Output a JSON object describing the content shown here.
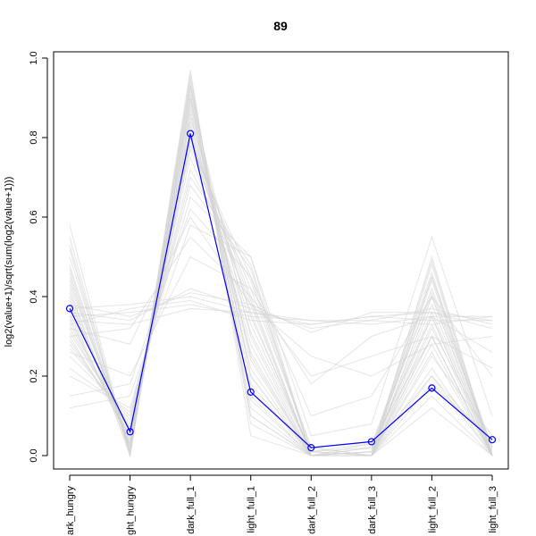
{
  "chart_data": {
    "type": "line",
    "title": "89",
    "xlabel": "",
    "ylabel": "log2(value+1)/sqrt(sum(log2(value+1)))",
    "categories": [
      "dark_hungry",
      "light_hungry",
      "dark_full_1",
      "light_full_1",
      "dark_full_2",
      "dark_full_3",
      "light_full_2",
      "light_full_3"
    ],
    "category_labels_shown": [
      "ark_hungry",
      "ght_hungry",
      "dark_full_1",
      "light_full_1",
      "dark_full_2",
      "dark_full_3",
      "light_full_2",
      "light_full_3"
    ],
    "ylim": [
      0,
      1.0
    ],
    "yticks": [
      "0.0",
      "0.2",
      "0.4",
      "0.6",
      "0.8",
      "1.0"
    ],
    "grid": false,
    "highlight_series": {
      "color": "#0000ff",
      "marker": "open-circle",
      "values": [
        0.37,
        0.06,
        0.81,
        0.16,
        0.02,
        0.035,
        0.17,
        0.04
      ]
    },
    "background_series_color": "#d3d3d3",
    "background_series": [
      [
        0.45,
        0.02,
        0.9,
        0.3,
        0.0,
        0.0,
        0.45,
        0.0
      ],
      [
        0.4,
        0.01,
        0.93,
        0.2,
        0.0,
        0.0,
        0.4,
        0.0
      ],
      [
        0.55,
        0.0,
        0.95,
        0.1,
        0.0,
        0.0,
        0.3,
        0.0
      ],
      [
        0.35,
        0.03,
        0.85,
        0.35,
        0.01,
        0.02,
        0.2,
        0.03
      ],
      [
        0.3,
        0.05,
        0.8,
        0.4,
        0.0,
        0.0,
        0.5,
        0.0
      ],
      [
        0.5,
        0.02,
        0.88,
        0.25,
        0.0,
        0.0,
        0.35,
        0.0
      ],
      [
        0.42,
        0.0,
        0.92,
        0.15,
        0.0,
        0.01,
        0.45,
        0.02
      ],
      [
        0.38,
        0.04,
        0.78,
        0.45,
        0.02,
        0.0,
        0.25,
        0.05
      ],
      [
        0.28,
        0.08,
        0.75,
        0.38,
        0.0,
        0.03,
        0.3,
        0.0
      ],
      [
        0.48,
        0.01,
        0.97,
        0.05,
        0.0,
        0.0,
        0.15,
        0.0
      ],
      [
        0.33,
        0.06,
        0.83,
        0.33,
        0.01,
        0.0,
        0.4,
        0.01
      ],
      [
        0.25,
        0.1,
        0.7,
        0.48,
        0.0,
        0.02,
        0.35,
        0.0
      ],
      [
        0.44,
        0.02,
        0.86,
        0.22,
        0.0,
        0.0,
        0.48,
        0.0
      ],
      [
        0.52,
        0.0,
        0.91,
        0.12,
        0.0,
        0.0,
        0.22,
        0.0
      ],
      [
        0.36,
        0.03,
        0.82,
        0.28,
        0.0,
        0.01,
        0.42,
        0.02
      ],
      [
        0.2,
        0.12,
        0.65,
        0.5,
        0.0,
        0.0,
        0.28,
        0.0
      ],
      [
        0.31,
        0.07,
        0.79,
        0.42,
        0.02,
        0.0,
        0.18,
        0.04
      ],
      [
        0.46,
        0.01,
        0.89,
        0.18,
        0.0,
        0.0,
        0.38,
        0.0
      ],
      [
        0.39,
        0.04,
        0.84,
        0.26,
        0.0,
        0.02,
        0.46,
        0.0
      ],
      [
        0.27,
        0.09,
        0.72,
        0.44,
        0.01,
        0.0,
        0.32,
        0.03
      ],
      [
        0.58,
        0.0,
        0.96,
        0.08,
        0.0,
        0.0,
        0.12,
        0.0
      ],
      [
        0.34,
        0.05,
        0.81,
        0.36,
        0.0,
        0.0,
        0.44,
        0.0
      ],
      [
        0.41,
        0.02,
        0.87,
        0.24,
        0.0,
        0.01,
        0.36,
        0.01
      ],
      [
        0.22,
        0.11,
        0.68,
        0.47,
        0.0,
        0.0,
        0.26,
        0.0
      ],
      [
        0.37,
        0.38,
        0.4,
        0.36,
        0.33,
        0.35,
        0.36,
        0.34
      ],
      [
        0.35,
        0.36,
        0.38,
        0.35,
        0.34,
        0.33,
        0.35,
        0.35
      ],
      [
        0.36,
        0.34,
        0.42,
        0.37,
        0.32,
        0.34,
        0.37,
        0.33
      ],
      [
        0.33,
        0.37,
        0.39,
        0.34,
        0.33,
        0.35,
        0.34,
        0.34
      ],
      [
        0.38,
        0.35,
        0.41,
        0.38,
        0.31,
        0.36,
        0.36,
        0.32
      ],
      [
        0.34,
        0.33,
        0.37,
        0.36,
        0.34,
        0.34,
        0.33,
        0.35
      ],
      [
        0.3,
        0.32,
        0.55,
        0.4,
        0.2,
        0.25,
        0.3,
        0.22
      ],
      [
        0.26,
        0.2,
        0.5,
        0.42,
        0.18,
        0.3,
        0.35,
        0.26
      ],
      [
        0.32,
        0.28,
        0.6,
        0.38,
        0.25,
        0.2,
        0.28,
        0.3
      ],
      [
        0.15,
        0.18,
        0.62,
        0.45,
        0.1,
        0.15,
        0.4,
        0.2
      ],
      [
        0.12,
        0.15,
        0.58,
        0.5,
        0.05,
        0.08,
        0.55,
        0.1
      ],
      [
        0.43,
        0.03,
        0.94,
        0.14,
        0.0,
        0.0,
        0.3,
        0.0
      ],
      [
        0.47,
        0.02,
        0.9,
        0.2,
        0.0,
        0.0,
        0.33,
        0.0
      ],
      [
        0.29,
        0.07,
        0.77,
        0.39,
        0.0,
        0.01,
        0.49,
        0.0
      ],
      [
        0.53,
        0.01,
        0.93,
        0.1,
        0.0,
        0.0,
        0.2,
        0.0
      ],
      [
        0.32,
        0.06,
        0.8,
        0.31,
        0.01,
        0.03,
        0.41,
        0.02
      ]
    ]
  }
}
